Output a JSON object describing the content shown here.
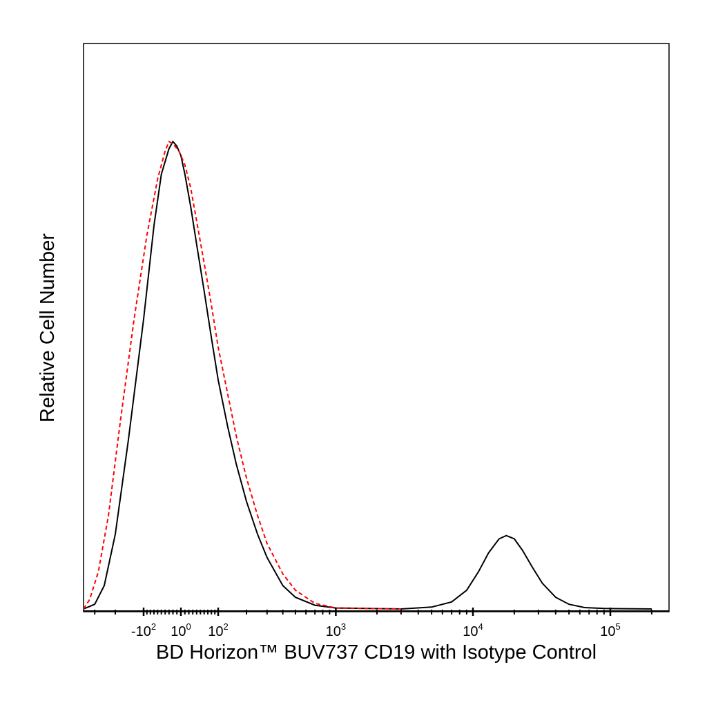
{
  "chart_data": {
    "type": "line",
    "title": "",
    "xlabel": "BD Horizon™ BUV737 CD19 with Isotype Control",
    "ylabel": "Relative Cell Number",
    "x_scale": "biexponential",
    "grid": false,
    "legend": "none",
    "x_ticks": [
      {
        "value": -100,
        "base": "-10",
        "exp": "2"
      },
      {
        "value": 0,
        "base": "10",
        "exp": "0"
      },
      {
        "value": 100,
        "base": "10",
        "exp": "2"
      },
      {
        "value": 1000,
        "base": "10",
        "exp": "3"
      },
      {
        "value": 10000,
        "base": "10",
        "exp": "4"
      },
      {
        "value": 100000,
        "base": "10",
        "exp": "5"
      }
    ],
    "series": [
      {
        "color": "#000000",
        "dash": "solid",
        "points": [
          [
            -400,
            0.0
          ],
          [
            -300,
            0.01
          ],
          [
            -250,
            0.05
          ],
          [
            -200,
            0.16
          ],
          [
            -150,
            0.36
          ],
          [
            -100,
            0.62
          ],
          [
            -70,
            0.82
          ],
          [
            -50,
            0.93
          ],
          [
            -30,
            0.985
          ],
          [
            -20,
            1.0
          ],
          [
            -10,
            0.99
          ],
          [
            0,
            0.97
          ],
          [
            10,
            0.93
          ],
          [
            25,
            0.86
          ],
          [
            40,
            0.78
          ],
          [
            60,
            0.68
          ],
          [
            80,
            0.58
          ],
          [
            100,
            0.49
          ],
          [
            130,
            0.39
          ],
          [
            160,
            0.31
          ],
          [
            200,
            0.23
          ],
          [
            250,
            0.16
          ],
          [
            300,
            0.11
          ],
          [
            400,
            0.05
          ],
          [
            500,
            0.025
          ],
          [
            700,
            0.008
          ],
          [
            1000,
            0.002
          ],
          [
            3000,
            0.0
          ],
          [
            5000,
            0.004
          ],
          [
            7000,
            0.015
          ],
          [
            9000,
            0.04
          ],
          [
            11000,
            0.08
          ],
          [
            13000,
            0.12
          ],
          [
            15500,
            0.15
          ],
          [
            17500,
            0.157
          ],
          [
            20000,
            0.15
          ],
          [
            23000,
            0.125
          ],
          [
            27000,
            0.09
          ],
          [
            32000,
            0.055
          ],
          [
            40000,
            0.025
          ],
          [
            50000,
            0.01
          ],
          [
            65000,
            0.003
          ],
          [
            90000,
            0.001
          ],
          [
            200000,
            0.0
          ]
        ]
      },
      {
        "color": "#ff0000",
        "dash": "dashed",
        "points": [
          [
            -400,
            0.0
          ],
          [
            -330,
            0.02
          ],
          [
            -280,
            0.08
          ],
          [
            -230,
            0.2
          ],
          [
            -180,
            0.4
          ],
          [
            -130,
            0.62
          ],
          [
            -90,
            0.8
          ],
          [
            -60,
            0.92
          ],
          [
            -40,
            0.98
          ],
          [
            -30,
            1.0
          ],
          [
            -20,
            0.995
          ],
          [
            -5,
            0.98
          ],
          [
            10,
            0.95
          ],
          [
            25,
            0.9
          ],
          [
            40,
            0.83
          ],
          [
            60,
            0.74
          ],
          [
            80,
            0.65
          ],
          [
            100,
            0.56
          ],
          [
            130,
            0.46
          ],
          [
            160,
            0.37
          ],
          [
            200,
            0.28
          ],
          [
            250,
            0.2
          ],
          [
            300,
            0.14
          ],
          [
            400,
            0.075
          ],
          [
            500,
            0.04
          ],
          [
            700,
            0.012
          ],
          [
            1000,
            0.002
          ],
          [
            3000,
            0.0
          ]
        ]
      }
    ]
  }
}
